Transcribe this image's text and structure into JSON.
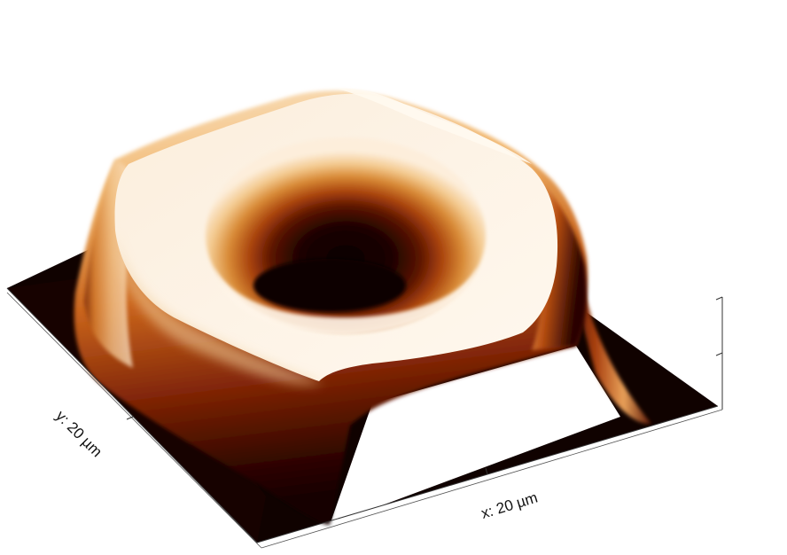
{
  "axes": {
    "x_label": "x: 20 µm",
    "y_label": "y: 20 µm"
  },
  "colors": {
    "colormap": [
      "#0d0000",
      "#3a0700",
      "#8a2a08",
      "#c8621a",
      "#e8a050",
      "#f6d4a0",
      "#fdeede",
      "#fffaf2"
    ],
    "background": "#ffffff",
    "substrate": "#100200"
  }
}
